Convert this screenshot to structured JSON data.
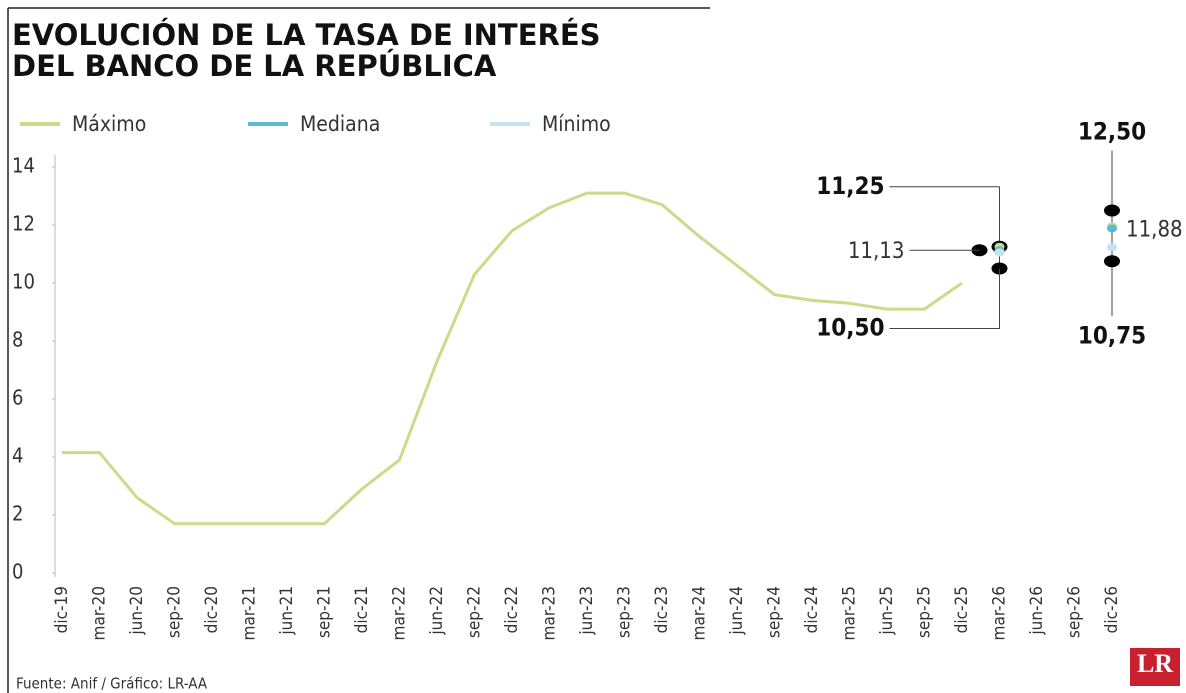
{
  "chart_data": {
    "type": "line",
    "title": [
      "EVOLUCIÓN DE LA TASA DE INTERÉS",
      "DEL BANCO DE LA REPÚBLICA"
    ],
    "source": "Fuente: Anif / Gráfico: LR-AA",
    "logo": "LR",
    "categories": [
      "dic-19",
      "mar-20",
      "jun-20",
      "sep-20",
      "dic-20",
      "mar-21",
      "jun-21",
      "sep-21",
      "dic-21",
      "mar-22",
      "jun-22",
      "sep-22",
      "dic-22",
      "mar-23",
      "jun-23",
      "sep-23",
      "dic-23",
      "mar-24",
      "jun-24",
      "sep-24",
      "dic-24",
      "mar-25",
      "jun-25",
      "sep-25",
      "dic-25",
      "mar-26",
      "jun-26",
      "sep-26",
      "dic-26"
    ],
    "series": [
      {
        "name": "Máximo",
        "color": "#c8dc8a",
        "values": [
          4.15,
          4.15,
          2.6,
          1.7,
          1.7,
          1.7,
          1.7,
          1.7,
          2.9,
          3.9,
          7.3,
          10.3,
          11.8,
          12.6,
          13.1,
          13.1,
          12.7,
          11.6,
          10.6,
          9.6,
          9.4,
          9.3,
          9.1,
          9.1,
          10.0,
          11.25,
          null,
          null,
          12.5
        ],
        "value_labels": [
          null,
          null,
          null,
          null,
          null,
          null,
          null,
          null,
          null,
          null,
          null,
          null,
          null,
          null,
          null,
          null,
          null,
          null,
          null,
          null,
          null,
          null,
          null,
          null,
          null,
          "11,25",
          null,
          null,
          "12,50"
        ]
      },
      {
        "name": "Mediana",
        "color": "#5bbad5",
        "values": [
          null,
          null,
          null,
          null,
          null,
          null,
          null,
          null,
          null,
          null,
          null,
          null,
          null,
          null,
          null,
          null,
          null,
          null,
          null,
          null,
          null,
          null,
          null,
          null,
          null,
          11.13,
          null,
          null,
          11.88
        ],
        "value_labels": [
          null,
          null,
          null,
          null,
          null,
          null,
          null,
          null,
          null,
          null,
          null,
          null,
          null,
          null,
          null,
          null,
          null,
          null,
          null,
          null,
          null,
          null,
          null,
          null,
          null,
          "11,13",
          null,
          null,
          "11,88"
        ]
      },
      {
        "name": "Mínimo",
        "color": "#c4e2ef",
        "values": [
          null,
          null,
          null,
          null,
          null,
          null,
          null,
          null,
          null,
          null,
          null,
          null,
          null,
          null,
          null,
          null,
          null,
          null,
          null,
          null,
          null,
          null,
          null,
          null,
          null,
          10.5,
          null,
          null,
          10.75
        ],
        "value_labels": [
          null,
          null,
          null,
          null,
          null,
          null,
          null,
          null,
          null,
          null,
          null,
          null,
          null,
          null,
          null,
          null,
          null,
          null,
          null,
          null,
          null,
          null,
          null,
          null,
          null,
          "10,50",
          null,
          null,
          "10,75"
        ]
      }
    ],
    "ylim": [
      0,
      14
    ],
    "yticks": [
      0,
      2,
      4,
      6,
      8,
      10,
      12,
      14
    ],
    "grid": false,
    "legend": "top-left"
  }
}
